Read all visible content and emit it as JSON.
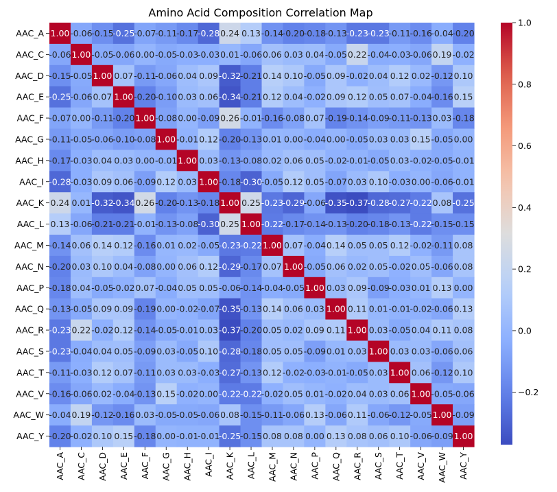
{
  "chart_data": {
    "type": "heatmap",
    "title": "Amino Acid Composition Correlation Map",
    "xlabel": "",
    "ylabel": "",
    "labels": [
      "AAC_A",
      "AAC_C",
      "AAC_D",
      "AAC_E",
      "AAC_F",
      "AAC_G",
      "AAC_H",
      "AAC_I",
      "AAC_K",
      "AAC_L",
      "AAC_M",
      "AAC_N",
      "AAC_P",
      "AAC_Q",
      "AAC_R",
      "AAC_S",
      "AAC_T",
      "AAC_V",
      "AAC_W",
      "AAC_Y"
    ],
    "matrix": [
      [
        1.0,
        -0.06,
        -0.15,
        -0.25,
        -0.07,
        -0.11,
        -0.17,
        -0.28,
        0.24,
        0.13,
        -0.14,
        -0.2,
        -0.18,
        -0.13,
        -0.23,
        -0.23,
        -0.11,
        -0.16,
        -0.04,
        -0.2
      ],
      [
        -0.06,
        1.0,
        -0.05,
        -0.06,
        -0.0,
        -0.05,
        -0.03,
        -0.03,
        0.01,
        -0.06,
        0.06,
        0.03,
        0.04,
        -0.05,
        0.22,
        -0.04,
        -0.03,
        -0.06,
        0.19,
        -0.02
      ],
      [
        -0.15,
        -0.05,
        1.0,
        0.07,
        -0.11,
        -0.06,
        0.04,
        0.09,
        -0.32,
        -0.21,
        0.14,
        0.1,
        -0.05,
        0.09,
        -0.02,
        0.04,
        0.12,
        0.02,
        -0.12,
        0.1
      ],
      [
        -0.25,
        -0.06,
        0.07,
        1.0,
        -0.2,
        -0.1,
        0.03,
        0.06,
        -0.34,
        -0.21,
        0.12,
        0.04,
        -0.02,
        0.09,
        0.12,
        0.05,
        0.07,
        -0.04,
        -0.16,
        0.15
      ],
      [
        -0.07,
        -0.0,
        -0.11,
        -0.2,
        1.0,
        -0.08,
        0.0,
        -0.09,
        0.26,
        -0.01,
        -0.16,
        -0.08,
        0.07,
        -0.19,
        -0.14,
        -0.09,
        -0.11,
        -0.13,
        0.03,
        -0.18
      ],
      [
        -0.11,
        -0.05,
        -0.06,
        -0.1,
        -0.08,
        1.0,
        -0.01,
        0.12,
        -0.2,
        -0.13,
        0.01,
        -0.0,
        -0.04,
        -0.0,
        -0.05,
        0.03,
        0.03,
        0.15,
        -0.05,
        0.0
      ],
      [
        -0.17,
        -0.03,
        0.04,
        0.03,
        0.0,
        -0.01,
        1.0,
        0.03,
        -0.13,
        -0.08,
        0.02,
        0.06,
        0.05,
        -0.02,
        -0.01,
        -0.05,
        0.03,
        -0.02,
        -0.05,
        -0.01
      ],
      [
        -0.28,
        -0.03,
        0.09,
        0.06,
        -0.09,
        0.12,
        0.03,
        1.0,
        -0.18,
        -0.3,
        -0.05,
        0.12,
        0.05,
        -0.07,
        0.03,
        0.1,
        -0.03,
        0.0,
        -0.06,
        -0.01
      ],
      [
        0.24,
        0.01,
        -0.32,
        -0.34,
        0.26,
        -0.2,
        -0.13,
        -0.18,
        1.0,
        0.25,
        -0.23,
        -0.29,
        -0.06,
        -0.35,
        -0.37,
        -0.28,
        -0.27,
        -0.22,
        0.08,
        -0.25
      ],
      [
        0.13,
        -0.06,
        -0.21,
        -0.21,
        -0.01,
        -0.13,
        -0.08,
        -0.3,
        0.25,
        1.0,
        -0.22,
        -0.17,
        -0.14,
        -0.13,
        -0.2,
        -0.18,
        -0.13,
        -0.22,
        -0.15,
        -0.15
      ],
      [
        -0.14,
        0.06,
        0.14,
        0.12,
        -0.16,
        0.01,
        0.02,
        -0.05,
        -0.23,
        -0.22,
        1.0,
        0.07,
        -0.04,
        0.14,
        0.05,
        0.05,
        0.12,
        -0.02,
        -0.11,
        0.08
      ],
      [
        -0.2,
        0.03,
        0.1,
        0.04,
        -0.08,
        -0.0,
        0.06,
        0.12,
        -0.29,
        -0.17,
        0.07,
        1.0,
        -0.05,
        0.06,
        0.02,
        0.05,
        -0.02,
        0.05,
        -0.06,
        0.08
      ],
      [
        -0.18,
        0.04,
        -0.05,
        -0.02,
        0.07,
        -0.04,
        0.05,
        0.05,
        -0.06,
        -0.14,
        -0.04,
        -0.05,
        1.0,
        0.03,
        0.09,
        -0.09,
        -0.03,
        0.01,
        0.13,
        -0.0
      ],
      [
        -0.13,
        -0.05,
        0.09,
        0.09,
        -0.19,
        -0.0,
        -0.02,
        -0.07,
        -0.35,
        -0.13,
        0.14,
        0.06,
        0.03,
        1.0,
        0.11,
        0.01,
        -0.01,
        -0.02,
        -0.06,
        0.13
      ],
      [
        -0.23,
        0.22,
        -0.02,
        0.12,
        -0.14,
        -0.05,
        -0.01,
        0.03,
        -0.37,
        -0.2,
        0.05,
        0.02,
        0.09,
        0.11,
        1.0,
        0.03,
        -0.05,
        0.04,
        0.11,
        0.08
      ],
      [
        -0.23,
        -0.04,
        0.04,
        0.05,
        -0.09,
        0.03,
        -0.05,
        0.1,
        -0.28,
        -0.18,
        0.05,
        0.05,
        -0.09,
        0.01,
        0.03,
        1.0,
        0.03,
        0.03,
        -0.06,
        0.06
      ],
      [
        -0.11,
        -0.03,
        0.12,
        0.07,
        -0.11,
        0.03,
        0.03,
        -0.03,
        -0.27,
        -0.13,
        0.12,
        -0.02,
        -0.03,
        -0.01,
        -0.05,
        0.03,
        1.0,
        0.06,
        -0.12,
        0.1
      ],
      [
        -0.16,
        -0.06,
        0.02,
        -0.04,
        -0.13,
        0.15,
        -0.02,
        0.0,
        -0.22,
        -0.22,
        -0.02,
        0.05,
        0.01,
        -0.02,
        0.04,
        0.03,
        0.06,
        1.0,
        -0.05,
        -0.06
      ],
      [
        -0.04,
        0.19,
        -0.12,
        -0.16,
        0.03,
        -0.05,
        -0.05,
        -0.06,
        0.08,
        -0.15,
        -0.11,
        -0.06,
        0.13,
        -0.06,
        0.11,
        -0.06,
        -0.12,
        -0.05,
        1.0,
        -0.09
      ],
      [
        -0.2,
        -0.02,
        0.1,
        0.15,
        -0.18,
        0.0,
        -0.01,
        -0.01,
        -0.25,
        -0.15,
        0.08,
        0.08,
        -0.0,
        0.13,
        0.08,
        0.06,
        0.1,
        -0.06,
        -0.09,
        1.0
      ]
    ],
    "colormap": "coolwarm",
    "vmin": -0.37,
    "vmax": 1.0,
    "colorbar_ticks": [
      1.0,
      0.8,
      0.6,
      0.4,
      0.2,
      0.0,
      -0.2
    ],
    "colorbar_tick_labels": [
      "1.0",
      "0.8",
      "0.6",
      "0.4",
      "0.2",
      "0.0",
      "−0.2"
    ],
    "annotation_format": "2 decimals",
    "grid": false
  }
}
